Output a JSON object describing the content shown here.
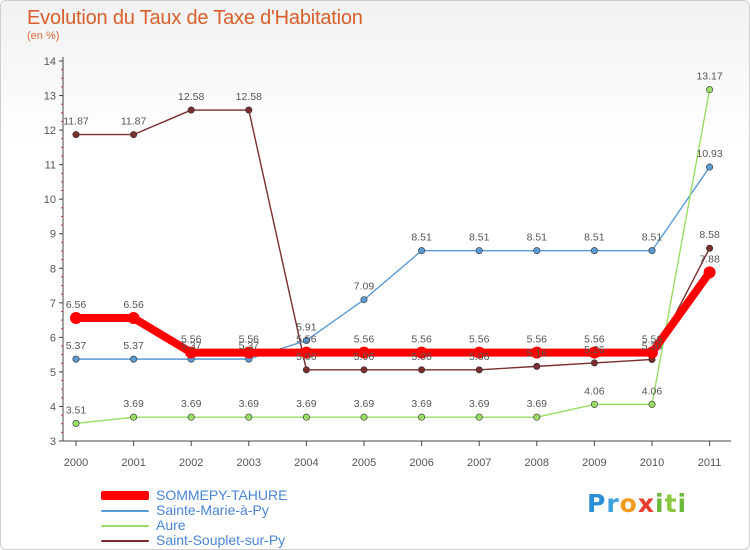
{
  "title": "Evolution du Taux de Taxe d'Habitation",
  "subtitle": "(en %)",
  "logo_text": "Proxiti",
  "chart_data": {
    "type": "line",
    "title": "Evolution du Taux de Taxe d'Habitation",
    "subtitle": "(en %)",
    "x": [
      "2000",
      "2001",
      "2002",
      "2003",
      "2004",
      "2005",
      "2006",
      "2007",
      "2008",
      "2009",
      "2010",
      "2011"
    ],
    "ylim": [
      3,
      14
    ],
    "yticks": [
      3,
      4,
      5,
      6,
      7,
      8,
      9,
      10,
      11,
      12,
      13,
      14
    ],
    "grid": false,
    "legend_position": "bottom-left",
    "series": [
      {
        "name": "SOMMEPY-TAHURE",
        "color": "#ff0000",
        "values": [
          6.56,
          6.56,
          5.56,
          5.56,
          5.56,
          5.56,
          5.56,
          5.56,
          5.56,
          5.56,
          5.56,
          7.88
        ],
        "labels": [
          "6.56",
          "6.56",
          "5.56",
          "5.56",
          "5.56",
          "5.56",
          "5.56",
          "5.56",
          "5.56",
          "5.56",
          "5.56",
          "7.88"
        ]
      },
      {
        "name": "Sainte-Marie-à-Py",
        "color": "#5b9bd5",
        "values": [
          5.37,
          5.37,
          5.37,
          5.37,
          5.91,
          7.09,
          8.51,
          8.51,
          8.51,
          8.51,
          8.51,
          10.93
        ],
        "labels": [
          "5.37",
          "5.37",
          "5.37",
          "5.37",
          "5.91",
          "7.09",
          "8.51",
          "8.51",
          "8.51",
          "8.51",
          "8.51",
          "10.93"
        ]
      },
      {
        "name": "Aure",
        "color": "#99dd66",
        "values": [
          3.51,
          3.69,
          3.69,
          3.69,
          3.69,
          3.69,
          3.69,
          3.69,
          3.69,
          4.06,
          4.06,
          13.17
        ],
        "labels": [
          "3.51",
          "3.69",
          "3.69",
          "3.69",
          "3.69",
          "3.69",
          "3.69",
          "3.69",
          "3.69",
          "4.06",
          "4.06",
          "13.17"
        ]
      },
      {
        "name": "Saint-Souplet-sur-Py",
        "color": "#7a2e2e",
        "values": [
          11.87,
          11.87,
          12.58,
          12.58,
          5.06,
          5.06,
          5.06,
          5.06,
          5.16,
          5.26,
          5.36,
          8.58
        ],
        "labels": [
          "11.87",
          "11.87",
          "12.58",
          "12.58",
          "5.06",
          "5.06",
          "5.06",
          "5.06",
          "5.16",
          "5.26",
          "5.36",
          "8.58"
        ]
      }
    ]
  },
  "legend": [
    {
      "label": "SOMMEPY-TAHURE",
      "color": "#ff0000"
    },
    {
      "label": "Sainte-Marie-à-Py",
      "color": "#5b9bd5"
    },
    {
      "label": "Aure",
      "color": "#99dd66"
    },
    {
      "label": "Saint-Souplet-sur-Py",
      "color": "#7a2e2e"
    }
  ]
}
